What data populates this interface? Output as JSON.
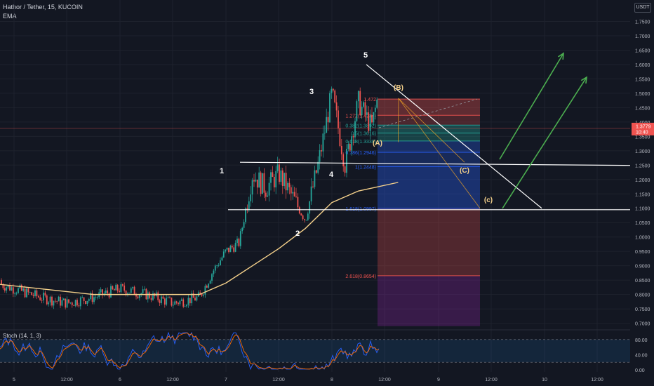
{
  "header": {
    "symbol_line": "Hathor / Tether, 15, KUCOIN",
    "indicator": "EMA",
    "currency": "USDT"
  },
  "price_axis": {
    "ticks": [
      "1.7500",
      "1.7000",
      "1.6500",
      "1.6000",
      "1.5500",
      "1.5000",
      "1.4500",
      "1.4000",
      "1.3500",
      "1.3000",
      "1.2500",
      "1.2000",
      "1.1500",
      "1.1000",
      "1.0500",
      "1.0000",
      "0.9500",
      "0.9000",
      "0.8500",
      "0.8000",
      "0.7500",
      "0.7000"
    ],
    "current_price": "1.3779",
    "countdown": "10:40"
  },
  "time_axis": {
    "ticks": [
      "5",
      "12:00",
      "6",
      "12:00",
      "7",
      "12:00",
      "8",
      "12:00",
      "9",
      "12:00",
      "10",
      "12:00"
    ]
  },
  "stoch": {
    "label": "Stoch (14, 1, 3)",
    "ticks": [
      "80.00",
      "40.00",
      "0.00"
    ]
  },
  "colors": {
    "up": "#26a69a",
    "down": "#ef5350",
    "ema": "#f5d18b",
    "green_arrow": "#4caf50",
    "wave": "#ffffff",
    "wave_abc": "#f5d18b"
  },
  "chart_data": {
    "type": "candlestick",
    "y_range": [
      0.69,
      1.78
    ],
    "x_range": [
      "5",
      "10 12:00"
    ],
    "price_path": [
      [
        "4 18:00",
        0.85
      ],
      [
        "5 00:00",
        0.82
      ],
      [
        "5 06:00",
        0.79
      ],
      [
        "5 12:00",
        0.77
      ],
      [
        "5 18:00",
        0.79
      ],
      [
        "6 00:00",
        0.82
      ],
      [
        "6 06:00",
        0.8
      ],
      [
        "6 12:00",
        0.77
      ],
      [
        "6 18:00",
        0.79
      ],
      [
        "6 21:00",
        0.88
      ],
      [
        "7 00:00",
        0.95
      ],
      [
        "7 03:00",
        0.98
      ],
      [
        "7 06:00",
        1.22
      ],
      [
        "7 09:00",
        1.17
      ],
      [
        "7 12:00",
        1.22
      ],
      [
        "7 18:00",
        1.06
      ],
      [
        "7 21:00",
        1.26
      ],
      [
        "8 00:00",
        1.5
      ],
      [
        "8 03:00",
        1.25
      ],
      [
        "8 06:00",
        1.47
      ],
      [
        "8 09:00",
        1.38
      ],
      [
        "8 12:00",
        1.61
      ],
      [
        "8 15:00",
        1.3779
      ]
    ],
    "ema_path": [
      [
        "4 18:00",
        0.84
      ],
      [
        "5 06:00",
        0.82
      ],
      [
        "5 18:00",
        0.8
      ],
      [
        "6 06:00",
        0.8
      ],
      [
        "6 18:00",
        0.8
      ],
      [
        "7 00:00",
        0.84
      ],
      [
        "7 06:00",
        0.9
      ],
      [
        "7 12:00",
        0.96
      ],
      [
        "7 18:00",
        1.03
      ],
      [
        "8 00:00",
        1.12
      ],
      [
        "8 06:00",
        1.16
      ],
      [
        "8 15:00",
        1.19
      ]
    ],
    "waves": [
      {
        "label": "1",
        "price": 1.25
      },
      {
        "label": "2",
        "price": 1.07
      },
      {
        "label": "3",
        "price": 1.5
      },
      {
        "label": "4",
        "price": 1.24
      },
      {
        "label": "5",
        "price": 1.64
      },
      {
        "label": "(A)",
        "price": 1.33
      },
      {
        "label": "(B)",
        "price": 1.5
      },
      {
        "label": "(C)",
        "price": 1.24
      },
      {
        "label": "(c)",
        "price": 1.13
      }
    ],
    "fib_levels": [
      {
        "label": "1.472",
        "price": 1.48
      },
      {
        "label": "1.272(1.4234)",
        "price": 1.4234
      },
      {
        "label": "0.382(1.3892)",
        "price": 1.3892
      },
      {
        "label": "0.5(1.3616)",
        "price": 1.3616
      },
      {
        "label": "0.618(1.3339)",
        "price": 1.3339
      },
      {
        "label": "0.786(1.2946)",
        "price": 1.2946
      },
      {
        "label": "1(1.2448)",
        "price": 1.2448
      },
      {
        "label": "1.618(1.0997)",
        "price": 1.0997
      },
      {
        "label": "2.618(0.8654)",
        "price": 0.8654
      }
    ],
    "horizontal_lines": [
      1.26,
      1.095
    ],
    "current_price_line": 1.3779,
    "stoch_k_d": {
      "upper": 80,
      "lower": 20
    }
  }
}
